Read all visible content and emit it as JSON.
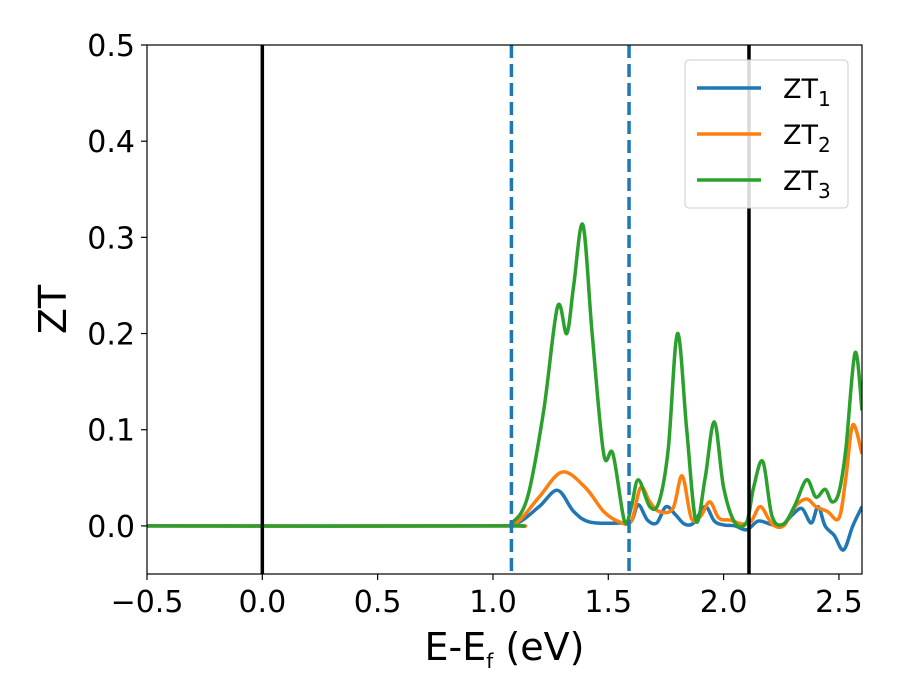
{
  "chart_data": {
    "type": "line",
    "xlabel": {
      "main": "E-E",
      "sub": "f",
      "tail": " (eV)"
    },
    "ylabel": "ZT",
    "xlim": [
      -0.5,
      2.6
    ],
    "ylim": [
      -0.05,
      0.5
    ],
    "xticks": [
      -0.5,
      0.0,
      0.5,
      1.0,
      1.5,
      2.0,
      2.5
    ],
    "xtick_labels": [
      "−0.5",
      "0.0",
      "0.5",
      "1.0",
      "1.5",
      "2.0",
      "2.5"
    ],
    "yticks": [
      0.0,
      0.1,
      0.2,
      0.3,
      0.4,
      0.5
    ],
    "ytick_labels": [
      "0.0",
      "0.1",
      "0.2",
      "0.3",
      "0.4",
      "0.5"
    ],
    "grid": false,
    "legend_position": "top-right",
    "vlines": [
      {
        "x": 0.0,
        "style": "solid",
        "color": "#000000"
      },
      {
        "x": 2.11,
        "style": "solid",
        "color": "#000000"
      },
      {
        "x": 1.08,
        "style": "dashed",
        "color": "#1f77b4"
      },
      {
        "x": 1.59,
        "style": "dashed",
        "color": "#1f77b4"
      }
    ],
    "series": [
      {
        "name": "ZT",
        "name_sub": "1",
        "color": "#1f77b4",
        "x": [
          -0.5,
          1.0,
          1.1,
          1.2,
          1.28,
          1.35,
          1.42,
          1.55,
          1.6,
          1.63,
          1.67,
          1.71,
          1.75,
          1.79,
          1.83,
          1.87,
          1.92,
          1.96,
          2.0,
          2.05,
          2.1,
          2.15,
          2.2,
          2.25,
          2.3,
          2.34,
          2.38,
          2.41,
          2.44,
          2.48,
          2.52,
          2.56,
          2.6
        ],
        "y": [
          0.0,
          0.0,
          0.002,
          0.02,
          0.037,
          0.015,
          0.004,
          0.003,
          0.005,
          0.022,
          0.006,
          0.003,
          0.02,
          0.012,
          0.002,
          0.003,
          0.02,
          0.005,
          0.001,
          0.0,
          -0.004,
          0.005,
          0.002,
          0.0,
          0.012,
          0.018,
          0.003,
          0.02,
          0.0,
          -0.01,
          -0.025,
          0.0,
          0.02
        ]
      },
      {
        "name": "ZT",
        "name_sub": "2",
        "color": "#ff7f0e",
        "x": [
          -0.5,
          1.0,
          1.1,
          1.2,
          1.3,
          1.4,
          1.48,
          1.55,
          1.6,
          1.64,
          1.68,
          1.72,
          1.78,
          1.82,
          1.86,
          1.9,
          1.94,
          1.98,
          2.03,
          2.08,
          2.12,
          2.16,
          2.21,
          2.26,
          2.31,
          2.36,
          2.4,
          2.45,
          2.5,
          2.53,
          2.56,
          2.6
        ],
        "y": [
          0.0,
          0.0,
          0.003,
          0.03,
          0.056,
          0.04,
          0.015,
          0.004,
          0.005,
          0.04,
          0.025,
          0.015,
          0.018,
          0.052,
          0.008,
          0.01,
          0.025,
          0.008,
          0.006,
          0.002,
          0.005,
          0.02,
          0.002,
          0.0,
          0.02,
          0.028,
          0.02,
          0.015,
          0.008,
          0.05,
          0.105,
          0.075
        ]
      },
      {
        "name": "ZT",
        "name_sub": "3",
        "color": "#2ca02c",
        "x": [
          -0.5,
          1.0,
          1.08,
          1.15,
          1.22,
          1.28,
          1.32,
          1.35,
          1.39,
          1.43,
          1.48,
          1.52,
          1.57,
          1.6,
          1.63,
          1.68,
          1.72,
          1.76,
          1.8,
          1.84,
          1.88,
          1.92,
          1.96,
          2.0,
          2.05,
          2.1,
          2.13,
          2.17,
          2.21,
          2.26,
          2.31,
          2.36,
          2.4,
          2.44,
          2.47,
          2.5,
          2.53,
          2.57,
          2.6
        ],
        "y": [
          0.0,
          0.0,
          0.003,
          0.03,
          0.12,
          0.228,
          0.2,
          0.25,
          0.313,
          0.2,
          0.075,
          0.075,
          0.005,
          0.02,
          0.048,
          0.02,
          0.025,
          0.08,
          0.2,
          0.1,
          0.005,
          0.05,
          0.108,
          0.04,
          0.003,
          0.004,
          0.04,
          0.067,
          0.01,
          0.002,
          0.022,
          0.048,
          0.03,
          0.038,
          0.025,
          0.035,
          0.08,
          0.18,
          0.12
        ]
      }
    ]
  }
}
